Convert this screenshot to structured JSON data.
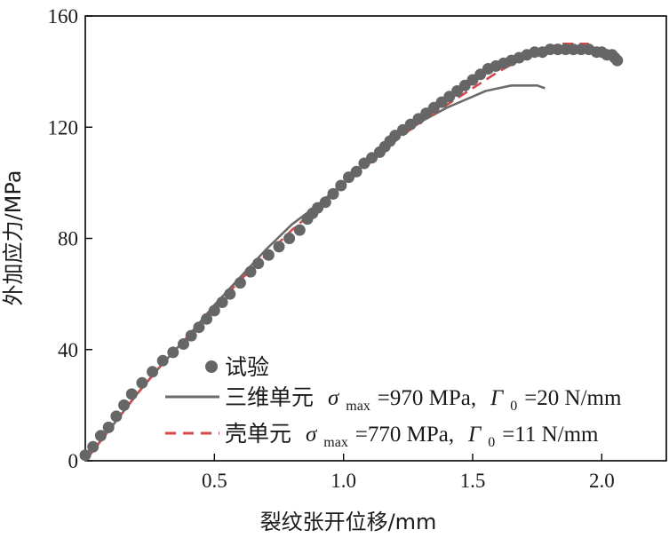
{
  "chart_data": {
    "type": "scatter+line",
    "title": "",
    "xlabel": "裂纹张开位移/mm",
    "ylabel": "外加应力/MPa",
    "xlim": [
      0.0,
      2.25
    ],
    "ylim": [
      0,
      160
    ],
    "xticks": [
      0.5,
      1.0,
      1.5,
      2.0
    ],
    "xtick_labels": [
      "0.5",
      "1.0",
      "1.5",
      "2.0"
    ],
    "yticks": [
      0,
      40,
      80,
      120,
      160
    ],
    "ytick_labels": [
      "0",
      "40",
      "80",
      "120",
      "160"
    ],
    "legend_position": "bottom-right",
    "series": [
      {
        "name": "试验",
        "kind": "scatter",
        "color": "#666666",
        "x": [
          0.0,
          0.03,
          0.06,
          0.09,
          0.12,
          0.15,
          0.18,
          0.22,
          0.26,
          0.3,
          0.34,
          0.38,
          0.41,
          0.44,
          0.47,
          0.5,
          0.53,
          0.56,
          0.6,
          0.64,
          0.67,
          0.71,
          0.75,
          0.79,
          0.83,
          0.86,
          0.88,
          0.9,
          0.93,
          0.96,
          0.99,
          1.02,
          1.05,
          1.08,
          1.11,
          1.14,
          1.16,
          1.18,
          1.2,
          1.23,
          1.26,
          1.29,
          1.32,
          1.35,
          1.38,
          1.41,
          1.44,
          1.47,
          1.5,
          1.53,
          1.56,
          1.59,
          1.62,
          1.65,
          1.68,
          1.71,
          1.74,
          1.77,
          1.8,
          1.83,
          1.86,
          1.89,
          1.92,
          1.95,
          1.98,
          2.0,
          2.02,
          2.04,
          2.05,
          2.06
        ],
        "y": [
          2,
          5,
          9,
          12,
          16,
          20,
          24,
          28,
          32,
          36,
          39,
          42,
          45,
          48,
          51,
          54,
          57,
          60,
          64,
          68,
          71,
          74,
          77,
          80,
          83,
          87,
          89,
          91,
          93,
          96,
          99,
          102,
          104,
          107,
          109,
          111,
          113,
          115,
          117,
          119,
          121,
          123,
          125,
          127,
          129,
          131,
          133,
          135,
          137,
          139,
          141,
          142,
          143,
          144,
          145,
          146,
          147,
          147,
          148,
          148,
          148,
          148,
          148,
          148,
          147,
          147,
          146,
          146,
          145,
          144
        ]
      },
      {
        "name": "三维单元",
        "formula_sigma": "σ",
        "sigma_sub": "max",
        "sigma_value": "=970 MPa,",
        "formula_gamma": "Γ",
        "gamma_sub": "0",
        "gamma_value": "=20 N/mm",
        "kind": "line",
        "color": "#6b6b6b",
        "x": [
          0.0,
          0.1,
          0.2,
          0.3,
          0.4,
          0.5,
          0.6,
          0.7,
          0.8,
          0.9,
          1.0,
          1.1,
          1.2,
          1.3,
          1.4,
          1.5,
          1.55,
          1.6,
          1.65,
          1.7,
          1.75,
          1.78
        ],
        "y": [
          0,
          12,
          24,
          35,
          45,
          56,
          66,
          76,
          85,
          92,
          100,
          108,
          116,
          122,
          127,
          131,
          133,
          134,
          135,
          135,
          135,
          134
        ]
      },
      {
        "name": "壳单元",
        "formula_sigma": "σ",
        "sigma_sub": "max",
        "sigma_value": "=770 MPa,",
        "formula_gamma": "Γ",
        "gamma_sub": "0",
        "gamma_value": "=11 N/mm",
        "kind": "dashed-line",
        "color": "#d6494a",
        "x": [
          0.0,
          0.1,
          0.2,
          0.3,
          0.4,
          0.5,
          0.6,
          0.7,
          0.8,
          0.9,
          1.0,
          1.1,
          1.2,
          1.3,
          1.4,
          1.5,
          1.6,
          1.7,
          1.8,
          1.85,
          1.9,
          1.95
        ],
        "y": [
          0,
          12,
          24,
          35,
          45,
          55,
          65,
          74,
          83,
          91,
          99,
          107,
          115,
          122,
          128,
          134,
          140,
          145,
          149,
          150,
          150,
          150
        ]
      }
    ]
  }
}
